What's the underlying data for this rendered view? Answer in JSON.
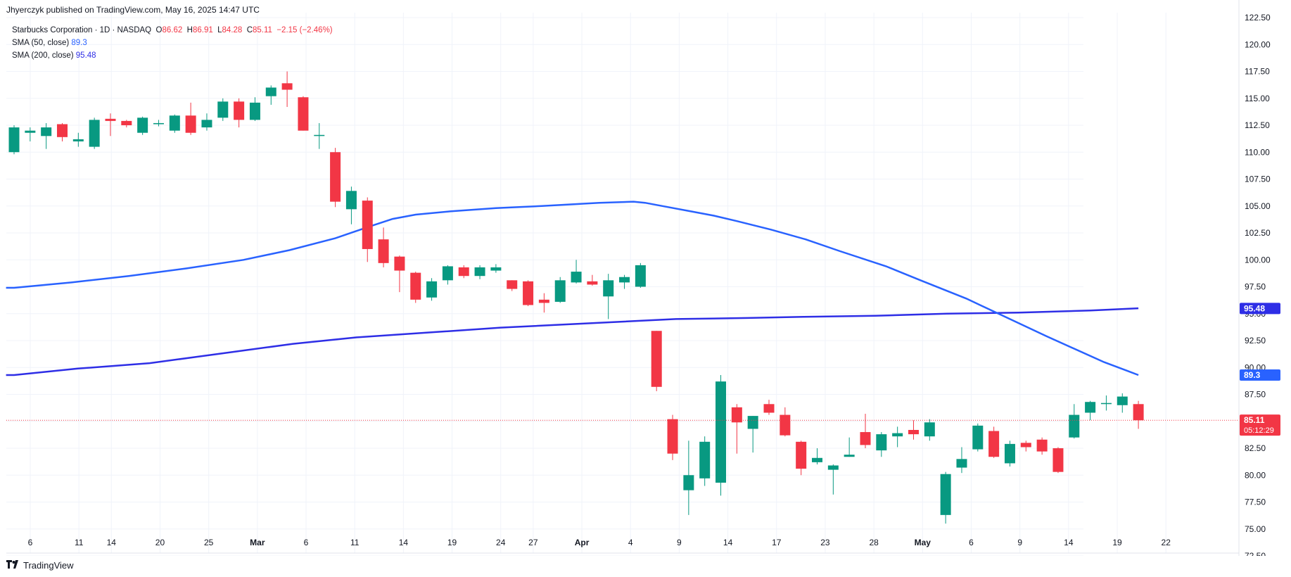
{
  "publisher_line": "Jhyerczyk published on TradingView.com, May 16, 2025 14:47 UTC",
  "legend": {
    "symbol": "Starbucks Corporation · 1D · NASDAQ",
    "o_label": "O",
    "o_value": "86.62",
    "h_label": "H",
    "h_value": "86.91",
    "l_label": "L",
    "l_value": "84.28",
    "c_label": "C",
    "c_value": "85.11",
    "change": "−2.15 (−2.46%)",
    "sma50_label": "SMA (50, close)",
    "sma50_value": "89.3",
    "sma200_label": "SMA (200, close)",
    "sma200_value": "95.48"
  },
  "footer": {
    "brand": "TradingView",
    "logo_icon": "tradingview-logo-icon"
  },
  "colors": {
    "up": "#089981",
    "down": "#f23645",
    "sma50": "#2962ff",
    "sma200": "#2e2ee6",
    "grid": "#f0f3fa",
    "axis_text": "#131722"
  },
  "chart_data": {
    "type": "candlestick",
    "title": "Starbucks Corporation · 1D · NASDAQ",
    "y_range": [
      71.1,
      123.2
    ],
    "y_ticks": [
      "72.50",
      "75.00",
      "77.50",
      "80.00",
      "82.50",
      "85.00",
      "87.50",
      "90.00",
      "92.50",
      "95.00",
      "97.50",
      "100.00",
      "102.50",
      "105.00",
      "107.50",
      "110.00",
      "112.50",
      "115.00",
      "117.50",
      "120.00",
      "122.50"
    ],
    "x_ticks": [
      "6",
      "11",
      "14",
      "20",
      "25",
      "Mar",
      "6",
      "11",
      "14",
      "19",
      "24",
      "27",
      "Apr",
      "4",
      "9",
      "14",
      "17",
      "23",
      "28",
      "May",
      "6",
      "9",
      "14",
      "19",
      "22"
    ],
    "price_labels": {
      "last_price": "85.11",
      "countdown": "05:12:29",
      "sma50": "89.3",
      "sma200": "95.48"
    },
    "candles": [
      {
        "o": 110.0,
        "h": 112.5,
        "l": 109.8,
        "c": 112.3
      },
      {
        "o": 111.8,
        "h": 112.3,
        "l": 111.0,
        "c": 112.0
      },
      {
        "o": 111.5,
        "h": 112.7,
        "l": 110.3,
        "c": 112.3
      },
      {
        "o": 112.6,
        "h": 112.7,
        "l": 111.0,
        "c": 111.4
      },
      {
        "o": 111.0,
        "h": 111.8,
        "l": 110.5,
        "c": 111.2
      },
      {
        "o": 110.5,
        "h": 113.2,
        "l": 110.3,
        "c": 113.0
      },
      {
        "o": 113.1,
        "h": 113.6,
        "l": 111.5,
        "c": 112.9
      },
      {
        "o": 112.9,
        "h": 113.0,
        "l": 112.3,
        "c": 112.5
      },
      {
        "o": 111.8,
        "h": 113.3,
        "l": 111.6,
        "c": 113.2
      },
      {
        "o": 112.6,
        "h": 113.0,
        "l": 112.4,
        "c": 112.7
      },
      {
        "o": 112.0,
        "h": 113.5,
        "l": 111.8,
        "c": 113.4
      },
      {
        "o": 113.4,
        "h": 114.6,
        "l": 111.6,
        "c": 111.8
      },
      {
        "o": 112.3,
        "h": 113.6,
        "l": 112.0,
        "c": 113.0
      },
      {
        "o": 113.2,
        "h": 115.0,
        "l": 112.9,
        "c": 114.7
      },
      {
        "o": 114.7,
        "h": 115.0,
        "l": 112.3,
        "c": 113.0
      },
      {
        "o": 113.0,
        "h": 115.1,
        "l": 112.9,
        "c": 114.6
      },
      {
        "o": 115.2,
        "h": 116.2,
        "l": 114.4,
        "c": 116.0
      },
      {
        "o": 116.4,
        "h": 117.5,
        "l": 114.2,
        "c": 115.8
      },
      {
        "o": 115.1,
        "h": 115.2,
        "l": 112.0,
        "c": 112.0
      },
      {
        "o": 111.5,
        "h": 112.7,
        "l": 110.3,
        "c": 111.6
      },
      {
        "o": 110.0,
        "h": 110.4,
        "l": 104.9,
        "c": 105.4
      },
      {
        "o": 104.7,
        "h": 106.8,
        "l": 103.3,
        "c": 106.4
      },
      {
        "o": 105.5,
        "h": 105.8,
        "l": 99.8,
        "c": 101.0
      },
      {
        "o": 101.9,
        "h": 103.0,
        "l": 99.3,
        "c": 99.7
      },
      {
        "o": 100.3,
        "h": 100.4,
        "l": 97.0,
        "c": 99.0
      },
      {
        "o": 98.8,
        "h": 98.9,
        "l": 96.0,
        "c": 96.3
      },
      {
        "o": 96.5,
        "h": 98.3,
        "l": 96.2,
        "c": 98.0
      },
      {
        "o": 98.1,
        "h": 99.5,
        "l": 97.7,
        "c": 99.4
      },
      {
        "o": 99.3,
        "h": 99.5,
        "l": 98.3,
        "c": 98.5
      },
      {
        "o": 98.5,
        "h": 99.5,
        "l": 98.2,
        "c": 99.3
      },
      {
        "o": 99.0,
        "h": 99.6,
        "l": 98.8,
        "c": 99.3
      },
      {
        "o": 98.1,
        "h": 98.1,
        "l": 97.1,
        "c": 97.3
      },
      {
        "o": 98.0,
        "h": 98.1,
        "l": 95.7,
        "c": 95.8
      },
      {
        "o": 96.3,
        "h": 96.9,
        "l": 95.1,
        "c": 96.0
      },
      {
        "o": 96.1,
        "h": 98.4,
        "l": 96.0,
        "c": 98.1
      },
      {
        "o": 97.9,
        "h": 100.0,
        "l": 97.8,
        "c": 98.9
      },
      {
        "o": 98.0,
        "h": 98.6,
        "l": 97.6,
        "c": 97.7
      },
      {
        "o": 96.6,
        "h": 98.7,
        "l": 94.5,
        "c": 98.1
      },
      {
        "o": 97.9,
        "h": 98.6,
        "l": 97.3,
        "c": 98.4
      },
      {
        "o": 97.5,
        "h": 99.7,
        "l": 97.4,
        "c": 99.5
      },
      {
        "o": 93.4,
        "h": 93.4,
        "l": 87.8,
        "c": 88.2
      },
      {
        "o": 85.2,
        "h": 85.6,
        "l": 81.4,
        "c": 82.0
      },
      {
        "o": 78.6,
        "h": 83.2,
        "l": 76.3,
        "c": 80.0
      },
      {
        "o": 79.7,
        "h": 83.6,
        "l": 79.0,
        "c": 83.1
      },
      {
        "o": 79.3,
        "h": 89.3,
        "l": 78.1,
        "c": 88.7
      },
      {
        "o": 86.3,
        "h": 86.6,
        "l": 82.0,
        "c": 84.9
      },
      {
        "o": 84.3,
        "h": 85.5,
        "l": 82.1,
        "c": 85.5
      },
      {
        "o": 86.6,
        "h": 87.0,
        "l": 85.6,
        "c": 85.8
      },
      {
        "o": 85.6,
        "h": 86.3,
        "l": 83.6,
        "c": 83.7
      },
      {
        "o": 83.1,
        "h": 83.2,
        "l": 80.0,
        "c": 80.6
      },
      {
        "o": 81.2,
        "h": 82.5,
        "l": 81.0,
        "c": 81.6
      },
      {
        "o": 80.5,
        "h": 81.0,
        "l": 78.2,
        "c": 80.9
      },
      {
        "o": 81.7,
        "h": 83.5,
        "l": 81.7,
        "c": 81.9
      },
      {
        "o": 84.0,
        "h": 85.7,
        "l": 82.5,
        "c": 82.8
      },
      {
        "o": 82.3,
        "h": 84.0,
        "l": 81.7,
        "c": 83.8
      },
      {
        "o": 83.6,
        "h": 84.5,
        "l": 82.6,
        "c": 83.9
      },
      {
        "o": 84.2,
        "h": 85.1,
        "l": 83.3,
        "c": 83.8
      },
      {
        "o": 83.6,
        "h": 85.2,
        "l": 83.2,
        "c": 84.9
      },
      {
        "o": 76.3,
        "h": 80.3,
        "l": 75.5,
        "c": 80.1
      },
      {
        "o": 80.7,
        "h": 82.6,
        "l": 80.2,
        "c": 81.5
      },
      {
        "o": 82.4,
        "h": 84.8,
        "l": 82.2,
        "c": 84.6
      },
      {
        "o": 84.1,
        "h": 84.5,
        "l": 81.6,
        "c": 81.7
      },
      {
        "o": 81.1,
        "h": 83.2,
        "l": 80.8,
        "c": 82.9
      },
      {
        "o": 83.0,
        "h": 83.2,
        "l": 82.2,
        "c": 82.6
      },
      {
        "o": 83.3,
        "h": 83.5,
        "l": 81.9,
        "c": 82.2
      },
      {
        "o": 82.5,
        "h": 82.6,
        "l": 80.2,
        "c": 80.3
      },
      {
        "o": 83.5,
        "h": 86.6,
        "l": 83.4,
        "c": 85.6
      },
      {
        "o": 85.8,
        "h": 86.9,
        "l": 85.1,
        "c": 86.8
      },
      {
        "o": 86.6,
        "h": 87.4,
        "l": 86.0,
        "c": 86.7
      },
      {
        "o": 86.5,
        "h": 87.6,
        "l": 85.8,
        "c": 87.3
      },
      {
        "o": 86.6,
        "h": 86.9,
        "l": 84.3,
        "c": 85.1
      }
    ],
    "sma50": [
      [
        0,
        97.4
      ],
      [
        5,
        97.9
      ],
      [
        10,
        98.5
      ],
      [
        15,
        99.2
      ],
      [
        20,
        100.0
      ],
      [
        24,
        100.9
      ],
      [
        28,
        102.0
      ],
      [
        31,
        103.1
      ],
      [
        33,
        103.8
      ],
      [
        35,
        104.2
      ],
      [
        38,
        104.5
      ],
      [
        42,
        104.8
      ],
      [
        46,
        105.0
      ],
      [
        51,
        105.3
      ],
      [
        54,
        105.4
      ],
      [
        55,
        105.3
      ],
      [
        57,
        104.9
      ],
      [
        59,
        104.5
      ],
      [
        61,
        104.1
      ],
      [
        63,
        103.6
      ],
      [
        66,
        102.8
      ],
      [
        69,
        101.9
      ],
      [
        72,
        100.8
      ],
      [
        76,
        99.4
      ],
      [
        79,
        98.1
      ],
      [
        83,
        96.4
      ],
      [
        86,
        94.9
      ],
      [
        90,
        92.9
      ],
      [
        95,
        90.5
      ],
      [
        97,
        89.7
      ],
      [
        98,
        89.3
      ]
    ],
    "sma200": [
      [
        0,
        89.3
      ],
      [
        8,
        89.9
      ],
      [
        17,
        90.4
      ],
      [
        26,
        91.3
      ],
      [
        35,
        92.2
      ],
      [
        43,
        92.8
      ],
      [
        53,
        93.3
      ],
      [
        61,
        93.7
      ],
      [
        72,
        94.1
      ],
      [
        83,
        94.5
      ],
      [
        92,
        94.6
      ],
      [
        99,
        94.7
      ],
      [
        108,
        94.8
      ],
      [
        117,
        95.0
      ],
      [
        126,
        95.1
      ],
      [
        135,
        95.3
      ],
      [
        141,
        95.5
      ]
    ]
  }
}
